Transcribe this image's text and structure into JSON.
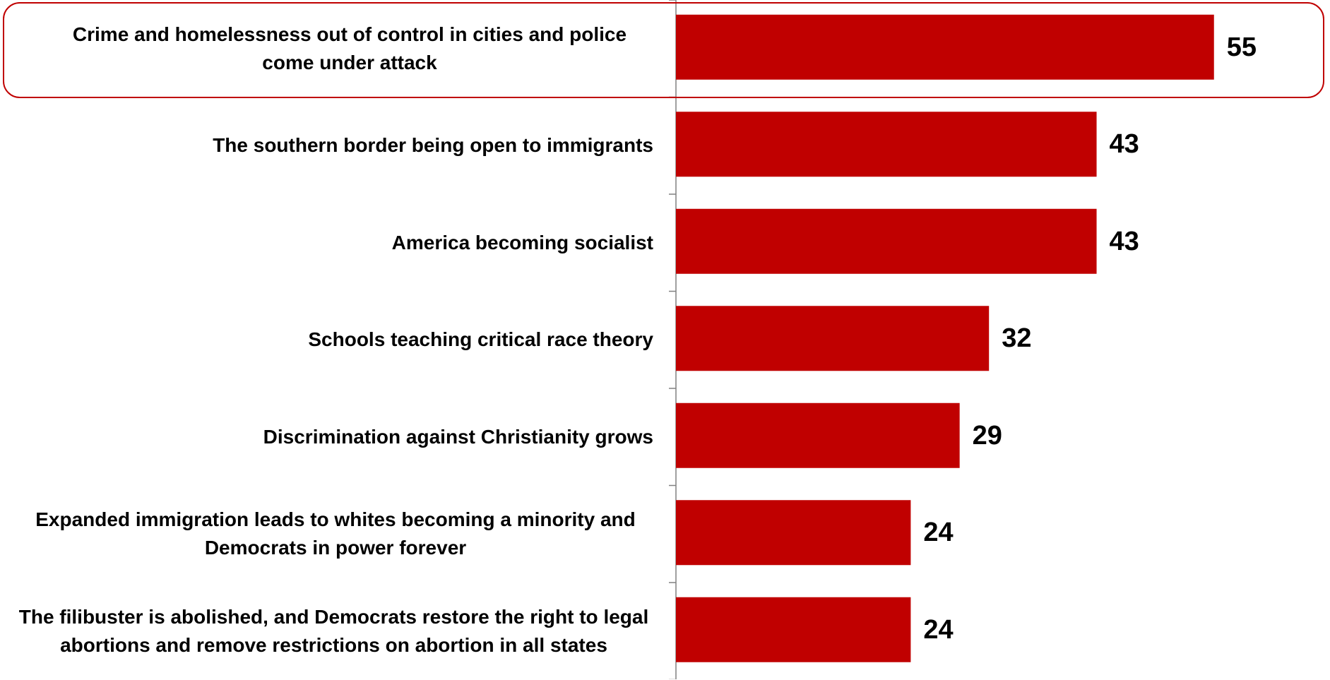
{
  "chart_data": {
    "type": "bar",
    "orientation": "horizontal",
    "categories": [
      "Crime and homelessness out of control in cities and police come under attack",
      "The southern border being open to immigrants",
      "America becoming socialist",
      "Schools teaching critical race theory",
      "Discrimination against Christianity grows",
      "Expanded immigration leads to whites becoming a minority and Democrats in power forever",
      "The filibuster is abolished, and Democrats restore the right to legal abortions and remove restrictions on abortion in all states"
    ],
    "values": [
      55,
      43,
      43,
      32,
      29,
      24,
      24
    ],
    "value_labels": [
      "55",
      "43",
      "43",
      "32",
      "29",
      "24",
      "24"
    ],
    "xlim": [
      0,
      60
    ],
    "grid": false,
    "legend": "none",
    "highlighted_category_index": 0
  },
  "colors": {
    "bar": "#c00000",
    "highlight_border": "#c00000",
    "axis": "#808080",
    "text": "#000000"
  }
}
